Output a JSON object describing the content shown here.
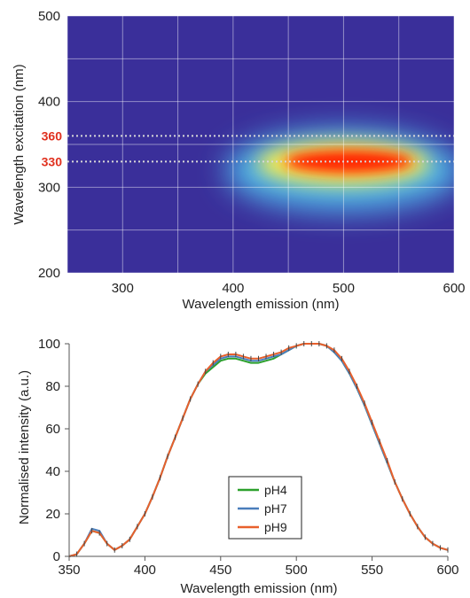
{
  "chart_data": [
    {
      "type": "heatmap",
      "xlabel": "Wavelength emission (nm)",
      "ylabel": "Wavelength excitation (nm)",
      "xlim": [
        250,
        600
      ],
      "ylim": [
        200,
        500
      ],
      "x_ticks": [
        300,
        400,
        500,
        600
      ],
      "y_ticks": [
        200,
        300,
        400,
        500
      ],
      "grid": true,
      "colormap": [
        "#3a2f9a",
        "#4fb6e8",
        "#ffee44",
        "#ff2200"
      ],
      "background_color": "#3a2f9a",
      "peak": {
        "emission": [
          440,
          560
        ],
        "excitation": 330
      },
      "highlight_lines": [
        {
          "excitation": 360,
          "label": "360",
          "color": "#e0301e"
        },
        {
          "excitation": 330,
          "label": "330",
          "color": "#e0301e"
        }
      ]
    },
    {
      "type": "line",
      "xlabel": "Wavelength emission (nm)",
      "ylabel": "Normalised intensity (a.u.)",
      "xlim": [
        350,
        600
      ],
      "ylim": [
        0,
        100
      ],
      "x_ticks": [
        350,
        400,
        450,
        500,
        550,
        600
      ],
      "y_ticks": [
        0,
        20,
        40,
        60,
        80,
        100
      ],
      "grid": false,
      "legend_position": "center-bottom",
      "x": [
        350,
        355,
        360,
        365,
        370,
        375,
        380,
        385,
        390,
        395,
        400,
        405,
        410,
        415,
        420,
        425,
        430,
        435,
        440,
        445,
        450,
        455,
        460,
        465,
        470,
        475,
        480,
        485,
        490,
        495,
        500,
        505,
        510,
        515,
        520,
        525,
        530,
        535,
        540,
        545,
        550,
        555,
        560,
        565,
        570,
        575,
        580,
        585,
        590,
        595,
        600
      ],
      "series": [
        {
          "name": "pH4",
          "color": "#2ca02c",
          "values": [
            0,
            1,
            6,
            12,
            11,
            6,
            3,
            5,
            8,
            14,
            20,
            28,
            37,
            47,
            56,
            65,
            74,
            81,
            86,
            89,
            92,
            93,
            93,
            92,
            91,
            91,
            92,
            93,
            95,
            97,
            99,
            100,
            100,
            100,
            99,
            96,
            92,
            86,
            79,
            71,
            62,
            53,
            44,
            35,
            27,
            20,
            14,
            9,
            6,
            4,
            3
          ]
        },
        {
          "name": "pH7",
          "color": "#4a7ebb",
          "values": [
            0,
            1,
            6,
            13,
            12,
            6,
            3,
            5,
            8,
            14,
            20,
            28,
            37,
            47,
            56,
            65,
            74,
            81,
            87,
            90,
            93,
            94,
            94,
            93,
            92,
            92,
            93,
            94,
            95,
            97,
            99,
            100,
            100,
            100,
            99,
            96,
            92,
            86,
            79,
            71,
            62,
            53,
            44,
            35,
            27,
            20,
            14,
            9,
            6,
            4,
            3
          ]
        },
        {
          "name": "pH9",
          "color": "#e8602c",
          "values": [
            0,
            1,
            6,
            12,
            11,
            6,
            3,
            5,
            8,
            14,
            20,
            28,
            37,
            47,
            56,
            65,
            74,
            81,
            87,
            91,
            94,
            95,
            95,
            94,
            93,
            93,
            94,
            95,
            96,
            98,
            99,
            100,
            100,
            100,
            99,
            97,
            93,
            87,
            80,
            72,
            63,
            54,
            45,
            35,
            27,
            20,
            14,
            9,
            6,
            4,
            3
          ]
        }
      ]
    }
  ]
}
